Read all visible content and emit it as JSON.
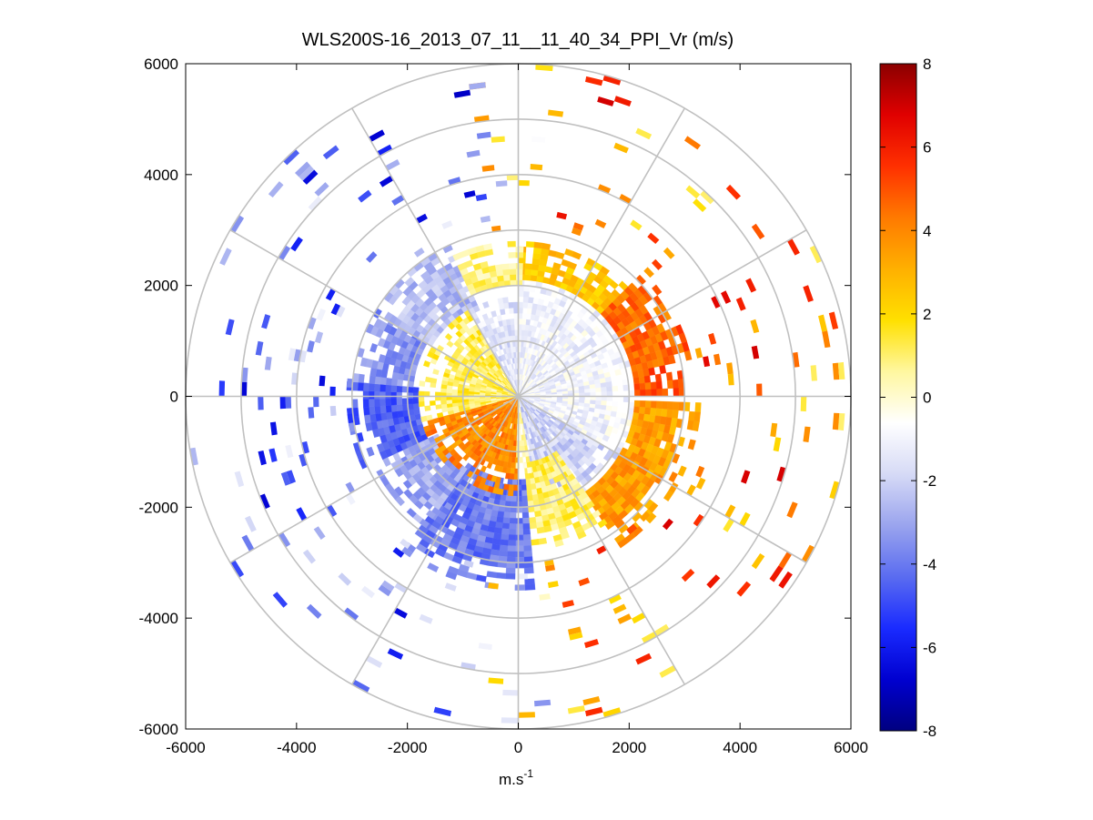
{
  "chart_data": {
    "type": "heatmap",
    "subtype": "polar-ppi-scan",
    "title": "WLS200S-16_2013_07_11__11_40_34_PPI_Vr (m/s)",
    "xlabel": "m.s",
    "xlabel_superscript": "-1",
    "ylabel": "",
    "xlim": [
      -6000,
      6000
    ],
    "ylim": [
      -6000,
      6000
    ],
    "x_ticks": [
      -6000,
      -4000,
      -2000,
      0,
      2000,
      4000,
      6000
    ],
    "y_ticks": [
      -6000,
      -4000,
      -2000,
      0,
      2000,
      4000,
      6000
    ],
    "x_tick_labels": [
      "-6000",
      "-4000",
      "-2000",
      "0",
      "2000",
      "4000",
      "6000"
    ],
    "y_tick_labels": [
      "-6000",
      "-4000",
      "-2000",
      "0",
      "2000",
      "4000",
      "6000"
    ],
    "polar_grid": {
      "rings_m": [
        1000,
        2000,
        3000,
        4000,
        5000,
        6000
      ],
      "spokes_deg": [
        0,
        30,
        60,
        90,
        120,
        150,
        180,
        210,
        240,
        270,
        300,
        330
      ]
    },
    "colorbar": {
      "range": [
        -8,
        8
      ],
      "ticks": [
        -8,
        -6,
        -4,
        -2,
        0,
        2,
        4,
        6,
        8
      ],
      "tick_labels": [
        "-8",
        "-6",
        "-4",
        "-2",
        "0",
        "2",
        "4",
        "6",
        "8"
      ],
      "colormap": [
        "#000080",
        "#0000d0",
        "#1a2bff",
        "#5a6cf0",
        "#9aa4ee",
        "#d6daf6",
        "#ffffff",
        "#fff7a0",
        "#ffe000",
        "#ffb000",
        "#ff7a00",
        "#ff3000",
        "#e00000",
        "#8b0000"
      ]
    },
    "velocity_regions": [
      {
        "az_from": 0,
        "az_to": 120,
        "r_from": 0,
        "r_to": 2100,
        "vr": -1.0
      },
      {
        "az_from": 120,
        "az_to": 170,
        "r_from": 0,
        "r_to": 2100,
        "vr": -2.0
      },
      {
        "az_from": 0,
        "az_to": 45,
        "r_from": 2100,
        "r_to": 2800,
        "vr": 2.5
      },
      {
        "az_from": 45,
        "az_to": 78,
        "r_from": 2100,
        "r_to": 3200,
        "vr": 4.5
      },
      {
        "az_from": 78,
        "az_to": 88,
        "r_from": 2100,
        "r_to": 3000,
        "vr": 5.0
      },
      {
        "az_from": 92,
        "az_to": 145,
        "r_from": 2100,
        "r_to": 3300,
        "vr": 3.5
      },
      {
        "az_from": 145,
        "az_to": 175,
        "r_from": 1200,
        "r_to": 2800,
        "vr": 1.0
      },
      {
        "az_from": 175,
        "az_to": 215,
        "r_from": 1500,
        "r_to": 3500,
        "vr": -4.0
      },
      {
        "az_from": 215,
        "az_to": 245,
        "r_from": 1600,
        "r_to": 2900,
        "vr": -3.0
      },
      {
        "az_from": 245,
        "az_to": 275,
        "r_from": 1800,
        "r_to": 3100,
        "vr": -4.5
      },
      {
        "az_from": 275,
        "az_to": 300,
        "r_from": 1900,
        "r_to": 3000,
        "vr": -3.5
      },
      {
        "az_from": 300,
        "az_to": 335,
        "r_from": 1800,
        "r_to": 3000,
        "vr": -2.5
      },
      {
        "az_from": 335,
        "az_to": 360,
        "r_from": 2000,
        "r_to": 2800,
        "vr": 0.8
      },
      {
        "az_from": 180,
        "az_to": 255,
        "r_from": 0,
        "r_to": 1800,
        "vr": 4.0
      },
      {
        "az_from": 255,
        "az_to": 330,
        "r_from": 0,
        "r_to": 1800,
        "vr": 1.2
      },
      {
        "az_from": 330,
        "az_to": 360,
        "r_from": 0,
        "r_to": 1800,
        "vr": -1.5
      },
      {
        "az_from": 170,
        "az_to": 180,
        "r_from": 0,
        "r_to": 1400,
        "vr": 0.3
      }
    ]
  }
}
